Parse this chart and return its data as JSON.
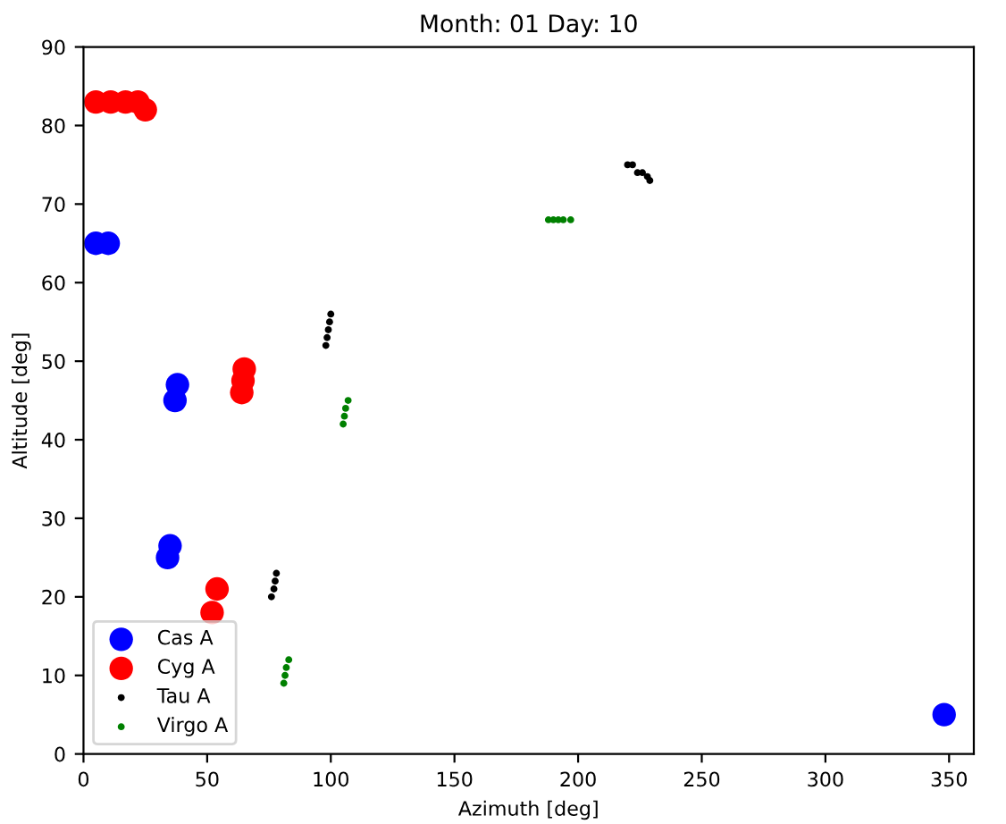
{
  "chart_data": {
    "type": "scatter",
    "title": "Month: 01 Day: 10",
    "xlabel": "Azimuth [deg]",
    "ylabel": "Altitude [deg]",
    "xlim": [
      0,
      360
    ],
    "xticks": [
      0,
      50,
      100,
      150,
      200,
      250,
      300,
      350
    ],
    "ylim": [
      0,
      90
    ],
    "yticks": [
      0,
      10,
      20,
      30,
      40,
      50,
      60,
      70,
      80,
      90
    ],
    "legend": "bottom left",
    "grid": false,
    "marker": "circle",
    "series": [
      {
        "name": "Cas A",
        "color": "#0000ff",
        "x": [
          5,
          10,
          34,
          35,
          37,
          38,
          348
        ],
        "values": [
          65,
          65,
          25,
          26.5,
          45,
          47,
          5
        ]
      },
      {
        "name": "Cyg A",
        "color": "#ff0000",
        "x": [
          5,
          11,
          17,
          22,
          25,
          52,
          54,
          64,
          64.5,
          65
        ],
        "values": [
          83,
          83,
          83,
          83,
          82,
          18,
          21,
          46,
          47.5,
          49
        ]
      },
      {
        "name": "Tau A",
        "color": "#000000",
        "x": [
          76,
          77,
          77.5,
          78,
          98,
          98.5,
          99,
          99.5,
          100,
          220,
          222,
          224,
          226,
          228,
          229
        ],
        "values": [
          20,
          21,
          22,
          23,
          52,
          53,
          54,
          55,
          56,
          75,
          75,
          74,
          74,
          73.5,
          73
        ]
      },
      {
        "name": "Virgo A",
        "color": "#008000",
        "x": [
          81,
          81.5,
          82,
          83,
          105,
          105.5,
          106,
          107,
          188,
          190,
          192,
          194,
          197
        ],
        "values": [
          9,
          10,
          11,
          12,
          42,
          43,
          44,
          45,
          68,
          68,
          68,
          68,
          68
        ]
      }
    ]
  }
}
